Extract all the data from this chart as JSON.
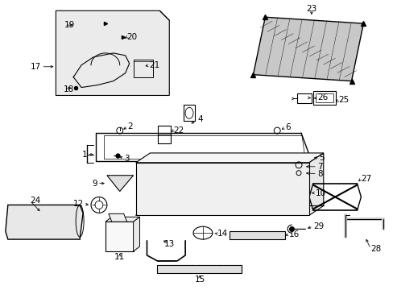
{
  "bg_color": "#ffffff",
  "fig_width": 4.89,
  "fig_height": 3.6,
  "dpi": 100,
  "text_color": "#000000",
  "font_size": 7.5,
  "line_color": "#000000"
}
